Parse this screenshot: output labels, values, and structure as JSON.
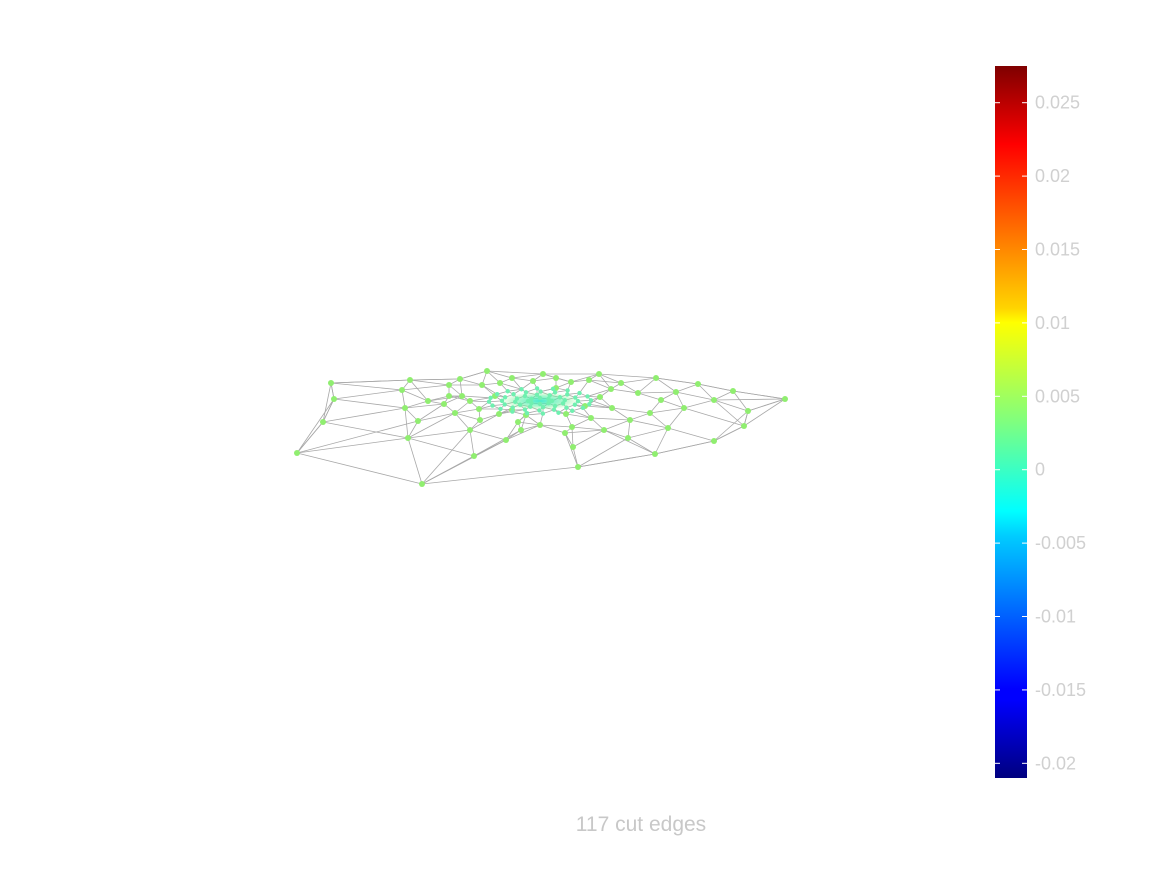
{
  "caption": "117 cut edges",
  "colorbar": {
    "colormap": "jet",
    "range": [
      -0.021,
      0.0275
    ],
    "ticks": [
      {
        "value": 0.025,
        "label": "0.025"
      },
      {
        "value": 0.02,
        "label": "0.02"
      },
      {
        "value": 0.015,
        "label": "0.015"
      },
      {
        "value": 0.01,
        "label": "0.01"
      },
      {
        "value": 0.005,
        "label": "0.005"
      },
      {
        "value": 0,
        "label": "0"
      },
      {
        "value": -0.005,
        "label": "-0.005"
      },
      {
        "value": -0.01,
        "label": "-0.01"
      },
      {
        "value": -0.015,
        "label": "-0.015"
      },
      {
        "value": -0.02,
        "label": "-0.02"
      }
    ]
  },
  "graph": {
    "node_value": 0.006,
    "center_node_value": 0.0045,
    "node_color": "#90ee70",
    "edge_color": "#a8a8a8"
  },
  "colors": {
    "tick_text": "#d0d0d0",
    "caption_text": "#c8c8c8",
    "background": "#ffffff"
  }
}
